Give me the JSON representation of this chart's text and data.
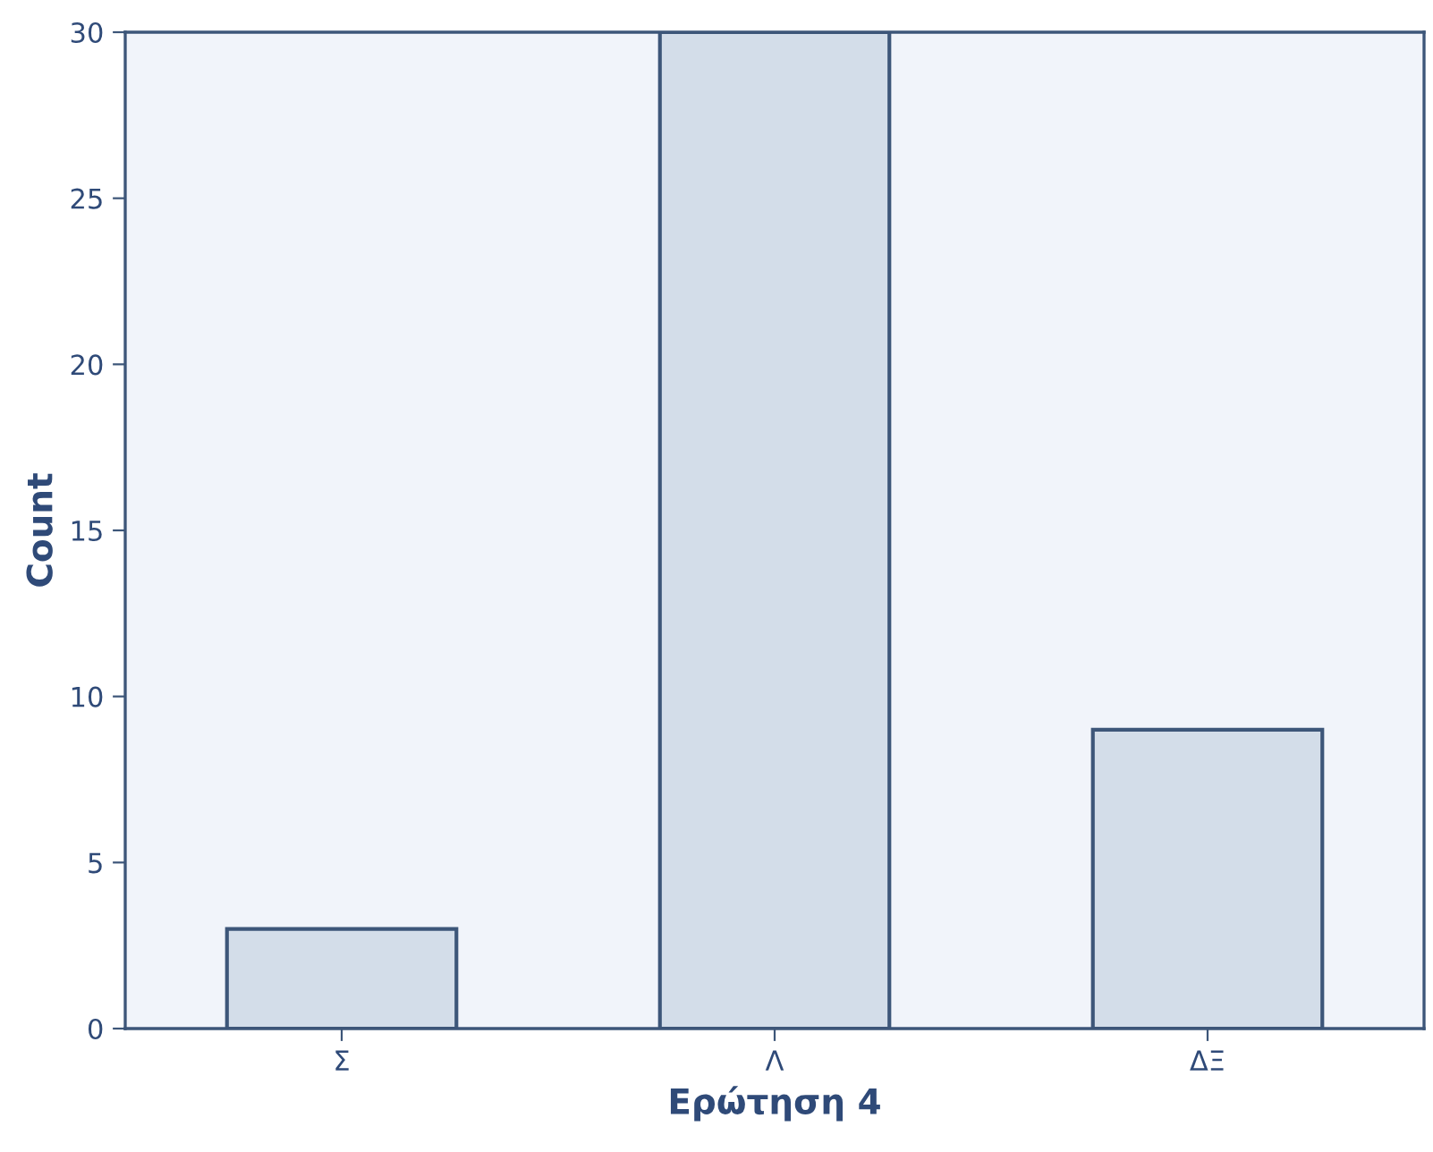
{
  "chart_data": {
    "type": "bar",
    "xlabel": "Ερώτηση 4",
    "ylabel": "Count",
    "categories": [
      "Σ",
      "Λ",
      "ΔΞ"
    ],
    "values": [
      3,
      30,
      9
    ],
    "color": "#d3dde9",
    "ylim": [
      0,
      30
    ],
    "yticks": [
      0,
      5,
      10,
      15,
      20,
      25,
      30
    ],
    "grid": false,
    "legend": false
  }
}
